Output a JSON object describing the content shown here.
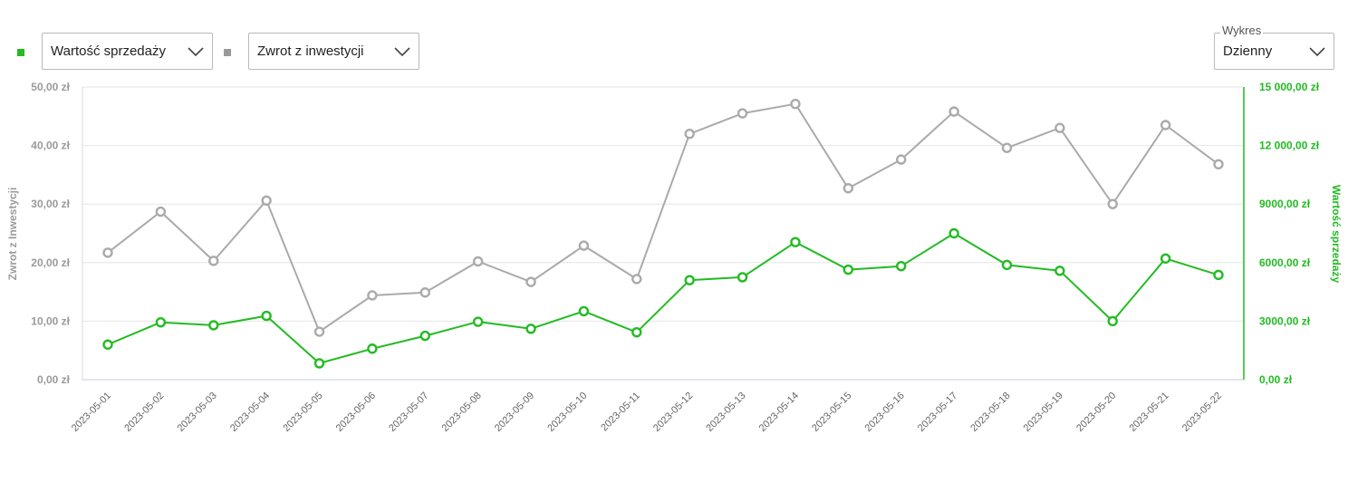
{
  "controls": {
    "metric1": {
      "label": "Wartość sprzedaży",
      "color": "#22bb22"
    },
    "metric2": {
      "label": "Zwrot z inwestycji",
      "color": "#999999"
    },
    "period": {
      "legend": "Wykres",
      "value": "Dzienny"
    },
    "chevron_icon": "chevron-down-icon"
  },
  "chart_data": {
    "type": "line",
    "categories": [
      "2023-05-01",
      "2023-05-02",
      "2023-05-03",
      "2023-05-04",
      "2023-05-05",
      "2023-05-06",
      "2023-05-07",
      "2023-05-08",
      "2023-05-09",
      "2023-05-10",
      "2023-05-11",
      "2023-05-12",
      "2023-05-13",
      "2023-05-14",
      "2023-05-15",
      "2023-05-16",
      "2023-05-17",
      "2023-05-18",
      "2023-05-19",
      "2023-05-20",
      "2023-05-21",
      "2023-05-22"
    ],
    "left_axis": {
      "label": "Zwrot z Inwestycji",
      "ylim": [
        0,
        50
      ],
      "ticks": [
        "0,00 zł",
        "10,00 zł",
        "20,00 zł",
        "30,00 zł",
        "40,00 zł",
        "50,00 zł"
      ],
      "color": "#999999"
    },
    "right_axis": {
      "label": "Wartość sprzedaży",
      "ylim": [
        0,
        15000
      ],
      "ticks": [
        "0,00 zł",
        "3000,00 zł",
        "6000,00 zł",
        "9000,00 zł",
        "12 000,00 zł",
        "15 000,00 zł"
      ],
      "color": "#22bb22"
    },
    "series": [
      {
        "name": "Zwrot z inwestycji",
        "axis": "left",
        "color": "#aaaaaa",
        "values": [
          21.7,
          28.7,
          20.3,
          30.6,
          8.2,
          14.4,
          14.9,
          20.2,
          16.7,
          22.9,
          17.2,
          42.0,
          45.5,
          47.1,
          32.7,
          37.6,
          45.8,
          39.6,
          43.0,
          30.0,
          43.5,
          36.8
        ]
      },
      {
        "name": "Wartość sprzedaży",
        "axis": "right",
        "color": "#22bb22",
        "values": [
          1800,
          2940,
          2790,
          3270,
          840,
          1590,
          2250,
          2970,
          2610,
          3510,
          2430,
          5100,
          5250,
          7050,
          5640,
          5820,
          7500,
          5880,
          5580,
          3000,
          6210,
          5370
        ]
      }
    ],
    "grid": true
  }
}
